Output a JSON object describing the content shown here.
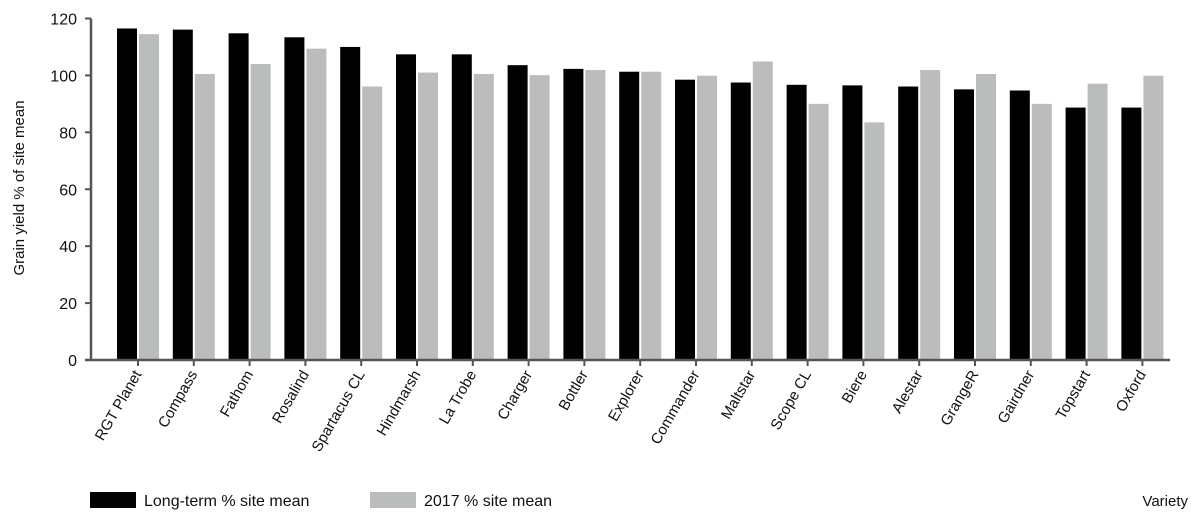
{
  "chart_data": {
    "type": "bar",
    "title": "",
    "xlabel": "Variety",
    "ylabel": "Grain yield % of site mean",
    "ylim": [
      0,
      120
    ],
    "yticks": [
      0,
      20,
      40,
      60,
      80,
      100,
      120
    ],
    "grid": false,
    "legend_placement": "bottom-left",
    "categories": [
      "RGT Planet",
      "Compass",
      "Fathom",
      "Rosalind",
      "Spartacus CL",
      "Hindmarsh",
      "La Trobe",
      "Charger",
      "Bottler",
      "Explorer",
      "Commander",
      "Maltstar",
      "Scope CL",
      "Biere",
      "Alestar",
      "GrangeR",
      "Gairdner",
      "Topstart",
      "Oxford"
    ],
    "series": [
      {
        "name": "Long-term % site mean",
        "color": "#000000",
        "values": [
          116.5,
          116.1,
          114.8,
          113.4,
          110.0,
          107.4,
          107.4,
          103.6,
          102.3,
          101.3,
          98.5,
          97.5,
          96.7,
          96.5,
          96.1,
          95.1,
          94.7,
          88.7,
          88.7
        ]
      },
      {
        "name": "2017 % site mean",
        "color": "#bbbdbd",
        "values": [
          114.5,
          100.5,
          104.0,
          109.4,
          96.1,
          101.0,
          100.5,
          100.1,
          101.9,
          101.3,
          99.9,
          104.9,
          90.0,
          83.5,
          101.9,
          100.5,
          90.0,
          97.1,
          99.9
        ]
      }
    ]
  }
}
